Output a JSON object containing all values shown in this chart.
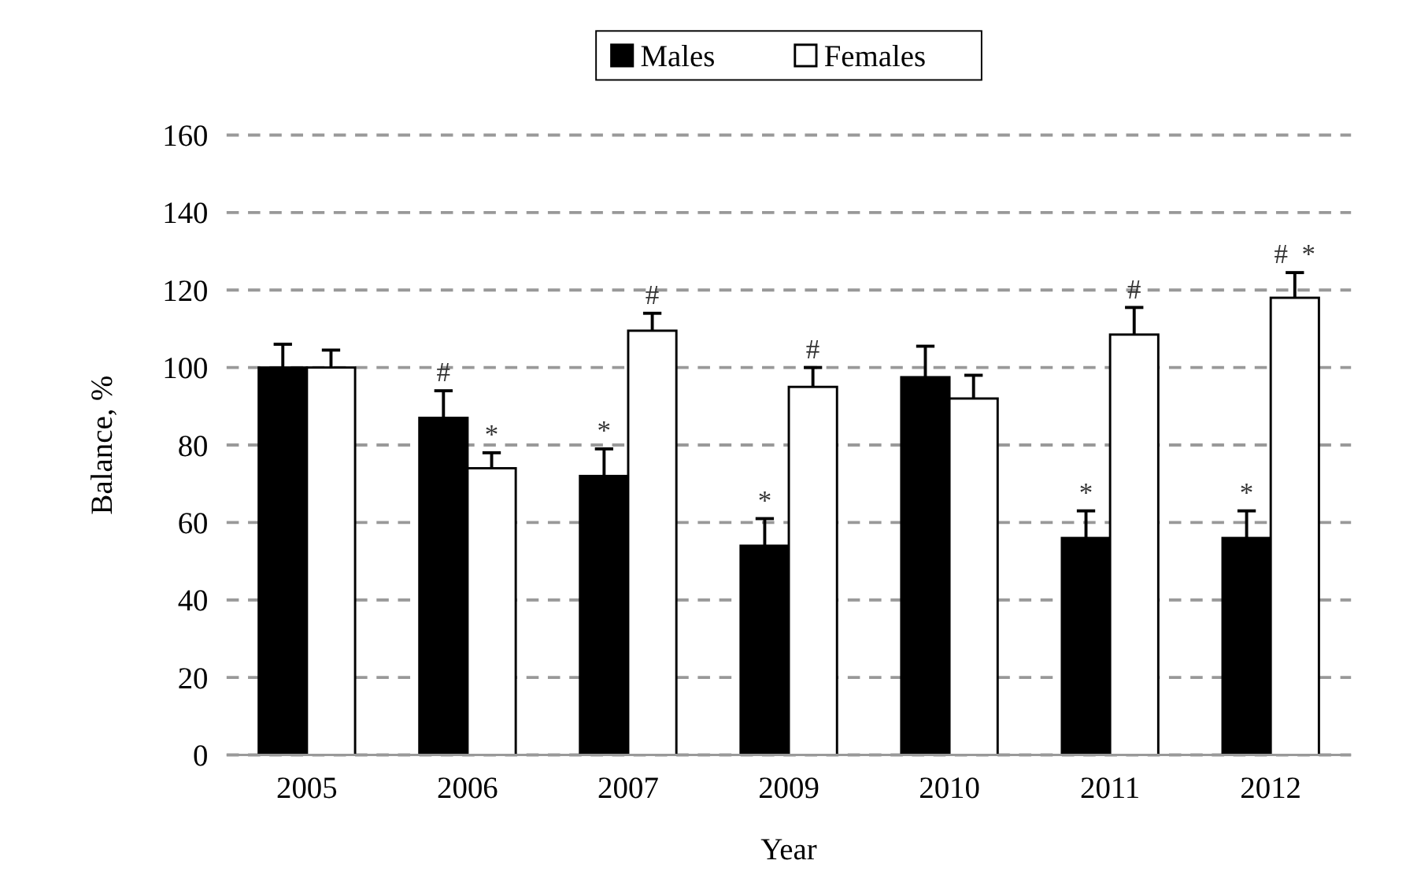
{
  "chart_data": {
    "type": "bar",
    "xlabel": "Year",
    "ylabel": "Balance, %",
    "categories": [
      "2005",
      "2006",
      "2007",
      "2009",
      "2010",
      "2011",
      "2012"
    ],
    "series": [
      {
        "name": "Males",
        "color": "#000000",
        "values": [
          100,
          87,
          72,
          54,
          97.5,
          56,
          56
        ],
        "errors": [
          6,
          7,
          7,
          7,
          8,
          7,
          7
        ]
      },
      {
        "name": "Females",
        "color": "#ffffff",
        "values": [
          100,
          74,
          109.5,
          95,
          92,
          108.5,
          118
        ],
        "errors": [
          4.5,
          4,
          4.5,
          5,
          6,
          7,
          6.5
        ]
      }
    ],
    "ylim": [
      0,
      160
    ],
    "yticks": [
      0,
      20,
      40,
      60,
      80,
      100,
      120,
      140,
      160
    ],
    "grid": "y",
    "legend": "top",
    "annotations": [
      {
        "text": "#",
        "x": "2006",
        "y": 87
      },
      {
        "text": "*",
        "x": "2006",
        "y": 74
      },
      {
        "text": "*",
        "x": "2007",
        "y": 72
      },
      {
        "text": "#",
        "x": "2007",
        "y": 109.5
      },
      {
        "text": "*",
        "x": "2009",
        "y": 54
      },
      {
        "text": "#",
        "x": "2009",
        "y": 95
      },
      {
        "text": "*",
        "x": "2011",
        "y": 56
      },
      {
        "text": "#",
        "x": "2011",
        "y": 108.5
      },
      {
        "text": "*",
        "x": "2012",
        "y": 56
      },
      {
        "text": "#",
        "x": "2012",
        "y": 118
      },
      {
        "text": "*",
        "x": "2012",
        "y": 118
      }
    ]
  }
}
